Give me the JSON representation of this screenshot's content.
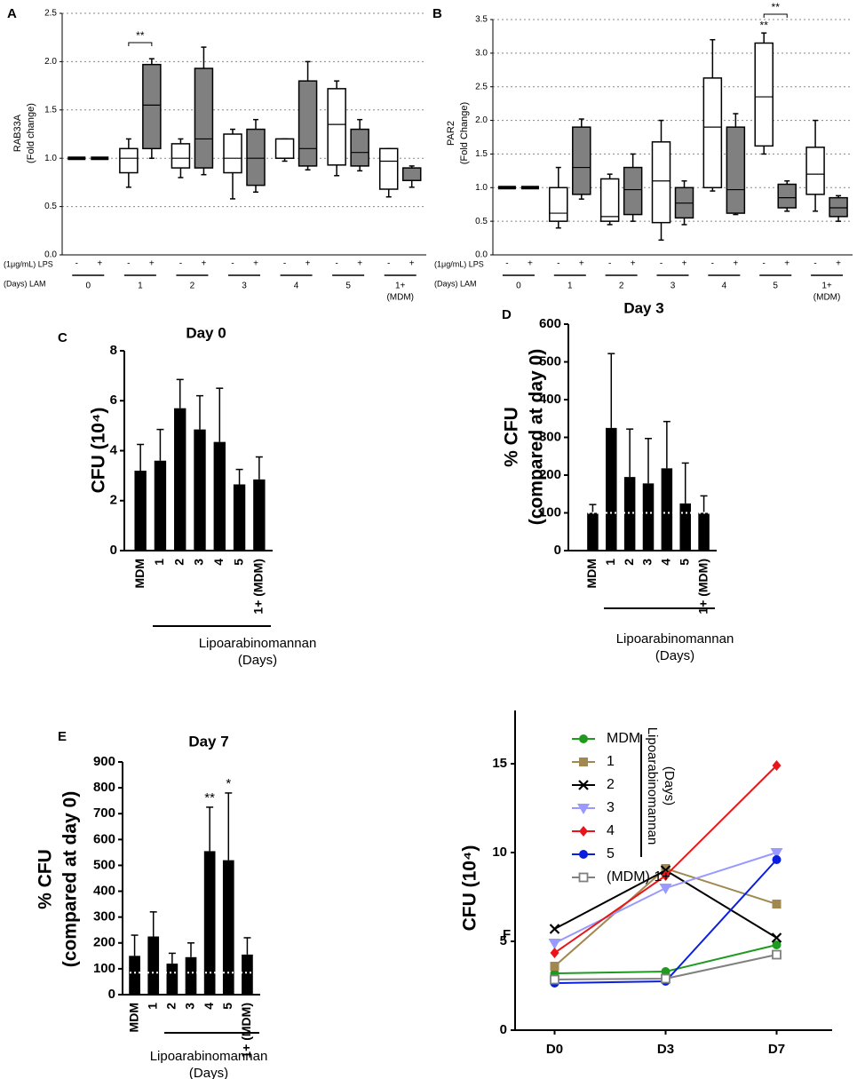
{
  "chart_data": [
    {
      "panel": "A",
      "type": "box",
      "y_label": [
        "RAB33A",
        "(Fold change)"
      ],
      "lps_label": "(1μg/mL) LPS",
      "lam_label": "(Days) LAM",
      "categories": [
        "0",
        "1",
        "2",
        "3",
        "4",
        "5",
        "1+"
      ],
      "category_sub": "(MDM)",
      "series": [
        {
          "name": "-",
          "color": "#ffffff",
          "values": [
            {
              "min": 1,
              "q1": 1,
              "median": 1,
              "q3": 1,
              "max": 1
            },
            {
              "min": 0.7,
              "q1": 0.85,
              "median": 1.0,
              "q3": 1.1,
              "max": 1.2
            },
            {
              "min": 0.8,
              "q1": 0.9,
              "median": 1.0,
              "q3": 1.15,
              "max": 1.2
            },
            {
              "min": 0.58,
              "q1": 0.85,
              "median": 1.0,
              "q3": 1.25,
              "max": 1.3
            },
            {
              "min": 0.97,
              "q1": 1.0,
              "median": 1.2,
              "q3": 1.2,
              "max": 1.2
            },
            {
              "min": 0.82,
              "q1": 0.93,
              "median": 1.35,
              "q3": 1.72,
              "max": 1.8
            },
            {
              "min": 0.6,
              "q1": 0.68,
              "median": 0.97,
              "q3": 1.1,
              "max": 1.1
            }
          ]
        },
        {
          "name": "+",
          "color": "#808080",
          "values": [
            {
              "min": 1,
              "q1": 1,
              "median": 1,
              "q3": 1,
              "max": 1
            },
            {
              "min": 1.0,
              "q1": 1.1,
              "median": 1.55,
              "q3": 1.97,
              "max": 2.03
            },
            {
              "min": 0.83,
              "q1": 0.9,
              "median": 1.2,
              "q3": 1.93,
              "max": 2.15
            },
            {
              "min": 0.65,
              "q1": 0.72,
              "median": 1.0,
              "q3": 1.3,
              "max": 1.4
            },
            {
              "min": 0.88,
              "q1": 0.92,
              "median": 1.1,
              "q3": 1.8,
              "max": 2.0
            },
            {
              "min": 0.87,
              "q1": 0.92,
              "median": 1.06,
              "q3": 1.3,
              "max": 1.4
            },
            {
              "min": 0.7,
              "q1": 0.77,
              "median": 0.9,
              "q3": 0.9,
              "max": 0.92
            }
          ]
        }
      ],
      "ylim": [
        0,
        2.5
      ],
      "yticks": [
        {
          "value": 0,
          "label": "0.0"
        },
        0.5,
        {
          "value": 1,
          "label": "1.0"
        },
        1.5,
        {
          "value": 2,
          "label": "2.0"
        },
        2.5
      ],
      "grid": true,
      "annotations": [
        "**"
      ]
    },
    {
      "panel": "B",
      "type": "box",
      "y_label": [
        "PAR2",
        "(Fold Change)"
      ],
      "lps_label": "(1μg/mL) LPS",
      "lam_label": "(Days) LAM",
      "categories": [
        "0",
        "1",
        "2",
        "3",
        "4",
        "5",
        "1+"
      ],
      "category_sub": "(MDM)",
      "series": [
        {
          "name": "-",
          "color": "#ffffff",
          "values": [
            {
              "min": 1,
              "q1": 1,
              "median": 1,
              "q3": 1,
              "max": 1
            },
            {
              "min": 0.4,
              "q1": 0.5,
              "median": 0.62,
              "q3": 1.0,
              "max": 1.3
            },
            {
              "min": 0.45,
              "q1": 0.5,
              "median": 0.57,
              "q3": 1.13,
              "max": 1.2
            },
            {
              "min": 0.22,
              "q1": 0.48,
              "median": 1.1,
              "q3": 1.68,
              "max": 2.0
            },
            {
              "min": 0.95,
              "q1": 1.0,
              "median": 1.9,
              "q3": 2.63,
              "max": 3.2
            },
            {
              "min": 1.5,
              "q1": 1.62,
              "median": 2.35,
              "q3": 3.15,
              "max": 3.3
            },
            {
              "min": 0.65,
              "q1": 0.9,
              "median": 1.2,
              "q3": 1.6,
              "max": 2.0
            }
          ]
        },
        {
          "name": "+",
          "color": "#808080",
          "values": [
            {
              "min": 1,
              "q1": 1,
              "median": 1,
              "q3": 1,
              "max": 1
            },
            {
              "min": 0.83,
              "q1": 0.9,
              "median": 1.3,
              "q3": 1.9,
              "max": 2.02
            },
            {
              "min": 0.5,
              "q1": 0.6,
              "median": 0.97,
              "q3": 1.3,
              "max": 1.5
            },
            {
              "min": 0.45,
              "q1": 0.55,
              "median": 0.77,
              "q3": 1.0,
              "max": 1.1
            },
            {
              "min": 0.6,
              "q1": 0.62,
              "median": 0.97,
              "q3": 1.9,
              "max": 2.1
            },
            {
              "min": 0.65,
              "q1": 0.7,
              "median": 0.85,
              "q3": 1.05,
              "max": 1.1
            },
            {
              "min": 0.5,
              "q1": 0.57,
              "median": 0.7,
              "q3": 0.85,
              "max": 0.88
            }
          ]
        }
      ],
      "ylim": [
        0,
        3.5
      ],
      "yticks": [
        {
          "value": 0,
          "label": "0.0"
        },
        0.5,
        {
          "value": 1,
          "label": "1.0"
        },
        1.5,
        {
          "value": 2,
          "label": "2.0"
        },
        2.5,
        {
          "value": 3,
          "label": "3.0"
        },
        3.5
      ],
      "grid": true,
      "annotations": [
        "**",
        "**"
      ]
    },
    {
      "panel": "C",
      "type": "bar",
      "title": "Day 0",
      "y_label": [
        "CFU (10⁴)"
      ],
      "x_label": [
        "Lipoarabinomannan",
        "(Days)"
      ],
      "categories": [
        "MDM",
        "1",
        "2",
        "3",
        "4",
        "5",
        "1+ (MDM)"
      ],
      "values": [
        3.2,
        3.6,
        5.7,
        4.85,
        4.35,
        2.65,
        2.85
      ],
      "errors": [
        1.05,
        1.25,
        1.15,
        1.35,
        2.15,
        0.6,
        0.9
      ],
      "color": "#000000",
      "ylim": [
        0,
        8
      ],
      "yticks": [
        0,
        2,
        4,
        6,
        8
      ]
    },
    {
      "panel": "D",
      "type": "bar",
      "title": "Day 3",
      "y_label": [
        "% CFU",
        "(compared at day 0)"
      ],
      "x_label": [
        "Lipoarabinomannan",
        "(Days)"
      ],
      "categories": [
        "MDM",
        "1",
        "2",
        "3",
        "4",
        "5",
        "1+ (MDM)"
      ],
      "values": [
        100,
        325,
        195,
        178,
        218,
        125,
        100
      ],
      "errors": [
        22,
        197,
        127,
        119,
        124,
        107,
        45
      ],
      "color": "#000000",
      "ylim": [
        0,
        600
      ],
      "yticks": [
        0,
        100,
        200,
        300,
        400,
        500,
        600
      ],
      "reference_line": 100
    },
    {
      "panel": "E",
      "type": "bar",
      "title": "Day 7",
      "y_label": [
        "% CFU",
        "(compared at day 0)"
      ],
      "x_label": [
        "Lipoarabinomannan",
        "(Days)"
      ],
      "categories": [
        "MDM",
        "1",
        "2",
        "3",
        "4",
        "5",
        "1+ (MDM)"
      ],
      "values": [
        150,
        225,
        120,
        145,
        555,
        520,
        155
      ],
      "errors": [
        80,
        95,
        40,
        55,
        170,
        260,
        65
      ],
      "color": "#000000",
      "ylim": [
        0,
        900
      ],
      "yticks": [
        0,
        100,
        200,
        300,
        400,
        500,
        600,
        700,
        800,
        900
      ],
      "reference_line": 85,
      "annotations": [
        "**",
        "*"
      ]
    },
    {
      "panel": "F",
      "type": "line",
      "y_label": "CFU (10⁴)",
      "legend_note": [
        "Lipoarabinomannan",
        "(Days)"
      ],
      "categories": [
        "D0",
        "D3",
        "D7"
      ],
      "ylim": [
        0,
        18
      ],
      "yticks": [
        0,
        5,
        10,
        15
      ],
      "series": [
        {
          "name": "MDM",
          "color": "#1f9a1f",
          "marker": "circle",
          "values": [
            3.2,
            3.3,
            4.8
          ]
        },
        {
          "name": "1",
          "color": "#a08850",
          "marker": "square",
          "values": [
            3.6,
            9.1,
            7.1
          ]
        },
        {
          "name": "2",
          "color": "#000000",
          "marker": "x",
          "values": [
            5.7,
            9.0,
            5.2
          ]
        },
        {
          "name": "3",
          "color": "#9999ff",
          "marker": "triangle-down",
          "values": [
            4.9,
            8.0,
            10.0
          ]
        },
        {
          "name": "4",
          "color": "#e8161b",
          "marker": "diamond",
          "values": [
            4.35,
            8.7,
            14.9
          ]
        },
        {
          "name": "5",
          "color": "#0a1ee0",
          "marker": "circle",
          "values": [
            2.65,
            2.75,
            9.6
          ]
        },
        {
          "name": "(MDM) 1+",
          "color": "#808080",
          "marker": "open-square",
          "values": [
            2.85,
            2.9,
            4.25
          ]
        }
      ]
    }
  ]
}
